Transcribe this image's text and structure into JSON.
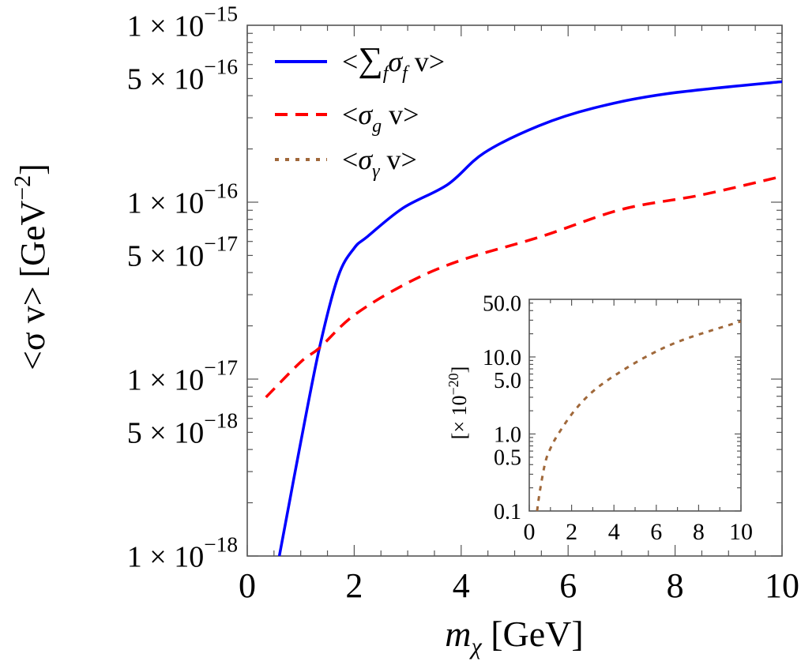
{
  "chart_data": [
    {
      "type": "line",
      "title": "",
      "xlabel": {
        "main": "m",
        "sub": "χ",
        "unit": " [GeV]"
      },
      "ylabel": {
        "main": "<σ v>  [GeV",
        "sup": "−2",
        "close": "]"
      },
      "xlim": [
        0,
        10
      ],
      "ylim": [
        1e-18,
        1e-15
      ],
      "yscale": "log",
      "grid": false,
      "legend_placement": "top-left",
      "x_ticks": [
        "0",
        "2",
        "4",
        "6",
        "8",
        "10"
      ],
      "y_ticks": [
        {
          "value": 1e-15,
          "mant": "1 × 10",
          "exp": "−15"
        },
        {
          "value": 5e-16,
          "mant": "5 × 10",
          "exp": "−16"
        },
        {
          "value": 1e-16,
          "mant": "1 × 10",
          "exp": "−16"
        },
        {
          "value": 5e-17,
          "mant": "5 × 10",
          "exp": "−17"
        },
        {
          "value": 1e-17,
          "mant": "1 × 10",
          "exp": "−17"
        },
        {
          "value": 5e-18,
          "mant": "5 × 10",
          "exp": "−18"
        },
        {
          "value": 1e-18,
          "mant": "1 × 10",
          "exp": "−18"
        }
      ],
      "series": [
        {
          "name": "<∑fσf v>",
          "label_parts": [
            "<",
            "∑",
            "f",
            "σ",
            "f",
            " v>"
          ],
          "color": "#0000ff",
          "style": "solid",
          "x": [
            0.6,
            0.8,
            1.0,
            1.35,
            1.7,
            2.0,
            2.25,
            2.92,
            3.75,
            4.43,
            5.45,
            6.47,
            7.84,
            10.0
          ],
          "y": [
            1e-18,
            2.1e-18,
            4.4e-18,
            1.5e-17,
            3.8e-17,
            5.5e-17,
            6.4e-17,
            9.3e-17,
            1.26e-16,
            1.9e-16,
            2.7e-16,
            3.4e-16,
            4.1e-16,
            4.8e-16
          ]
        },
        {
          "name": "<σg v>",
          "label_parts": [
            "<",
            "σ",
            "g",
            " v>"
          ],
          "color": "#ff0000",
          "style": "dashed",
          "x": [
            0.35,
            1.0,
            1.35,
            2.0,
            3.0,
            4.0,
            5.5,
            7.0,
            8.5,
            10.0
          ],
          "y": [
            7.9e-18,
            1.25e-17,
            1.5e-17,
            2.3e-17,
            3.5e-17,
            4.7e-17,
            6.4e-17,
            9.1e-17,
            1.1e-16,
            1.4e-16
          ]
        },
        {
          "name": "<σγ v>",
          "label_parts": [
            "<",
            "σ",
            "γ",
            " v>"
          ],
          "color": "#a0683a",
          "style": "dotted"
        }
      ]
    },
    {
      "type": "line",
      "inset": true,
      "ylabel": {
        "main": "[× 10",
        "sup": "−20",
        "close": "]"
      },
      "xlim": [
        0,
        10
      ],
      "ylim": [
        0.1,
        56
      ],
      "yscale": "log",
      "x_ticks": [
        "0",
        "2",
        "4",
        "6",
        "8",
        "10"
      ],
      "y_ticks": [
        {
          "value": 50,
          "label": "50.0"
        },
        {
          "value": 10,
          "label": "10.0"
        },
        {
          "value": 5,
          "label": "5.0"
        },
        {
          "value": 1,
          "label": "1.0"
        },
        {
          "value": 0.5,
          "label": "0.5"
        },
        {
          "value": 0.1,
          "label": "0.1"
        }
      ],
      "series": [
        {
          "name": "<σγ v>",
          "color": "#a0683a",
          "style": "dotted",
          "x": [
            0.37,
            0.5,
            0.75,
            1.0,
            1.37,
            2.1,
            2.97,
            4.1,
            5.7,
            7.35,
            10.0
          ],
          "y": [
            0.1,
            0.18,
            0.42,
            0.65,
            1.0,
            1.95,
            3.5,
            5.9,
            10.7,
            17,
            29
          ]
        }
      ]
    }
  ]
}
